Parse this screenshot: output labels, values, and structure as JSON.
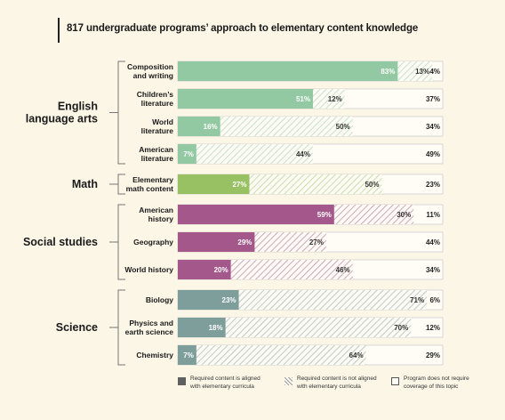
{
  "title": "817 undergraduate programs’ approach to elementary content knowledge",
  "chart_data": {
    "type": "bar",
    "stacked": true,
    "orientation": "horizontal",
    "xlim": [
      0,
      100
    ],
    "groups": [
      {
        "name": "English language arts",
        "name_lines": [
          "English",
          "language arts"
        ],
        "color": "#93c9a2",
        "rows": [
          {
            "label_lines": [
              "Composition",
              "and writing"
            ],
            "values": [
              83,
              13,
              4
            ]
          },
          {
            "label_lines": [
              "Children’s",
              "literature"
            ],
            "values": [
              51,
              12,
              37
            ]
          },
          {
            "label_lines": [
              "World",
              "literature"
            ],
            "values": [
              16,
              50,
              34
            ]
          },
          {
            "label_lines": [
              "American",
              "literature"
            ],
            "values": [
              7,
              44,
              49
            ]
          }
        ]
      },
      {
        "name": "Math",
        "name_lines": [
          "Math"
        ],
        "color": "#98c163",
        "rows": [
          {
            "label_lines": [
              "Elementary",
              "math content"
            ],
            "values": [
              27,
              50,
              23
            ]
          }
        ]
      },
      {
        "name": "Social studies",
        "name_lines": [
          "Social studies"
        ],
        "color": "#a3578a",
        "rows": [
          {
            "label_lines": [
              "American",
              "history"
            ],
            "values": [
              59,
              30,
              11
            ]
          },
          {
            "label_lines": [
              "Geography"
            ],
            "values": [
              29,
              27,
              44
            ]
          },
          {
            "label_lines": [
              "World history"
            ],
            "values": [
              20,
              46,
              34
            ]
          }
        ]
      },
      {
        "name": "Science",
        "name_lines": [
          "Science"
        ],
        "color": "#7d9e9a",
        "rows": [
          {
            "label_lines": [
              "Biology"
            ],
            "values": [
              23,
              71,
              6
            ]
          },
          {
            "label_lines": [
              "Physics and",
              "earth science"
            ],
            "values": [
              18,
              70,
              12
            ]
          },
          {
            "label_lines": [
              "Chemistry"
            ],
            "values": [
              7,
              64,
              29
            ]
          }
        ]
      }
    ],
    "series": [
      {
        "name": "Required content is aligned with elementary curricula",
        "legend_lines": [
          "Required content is aligned",
          "with elementary curricula"
        ],
        "style": "solid"
      },
      {
        "name": "Required content is not aligned with elementary curricula",
        "legend_lines": [
          "Required content is not aligned",
          "with elementary curricula"
        ],
        "style": "hatched"
      },
      {
        "name": "Program does not require coverage of this topic",
        "legend_lines": [
          "Program does not require",
          "coverage of this topic"
        ],
        "style": "empty"
      }
    ],
    "value_suffix": "%",
    "legend_position": "bottom"
  }
}
